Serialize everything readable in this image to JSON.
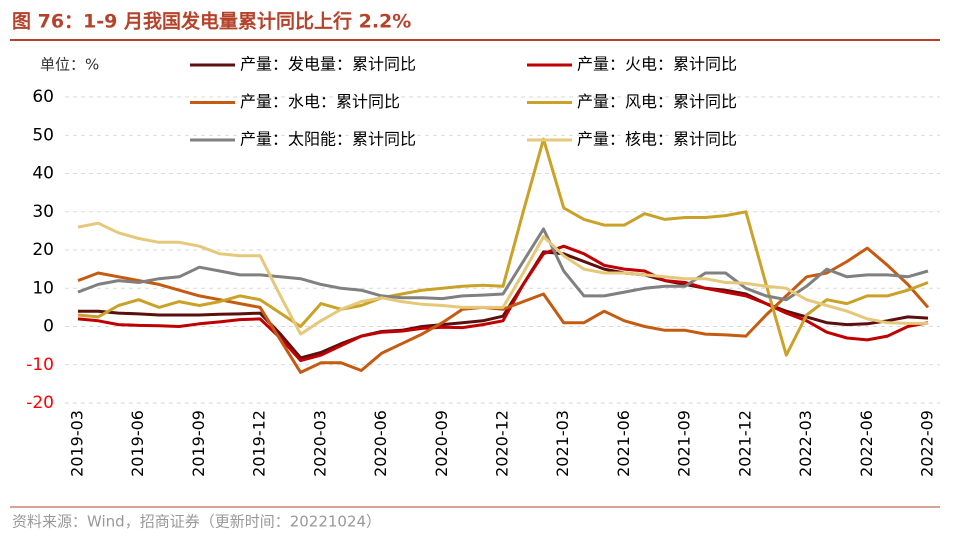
{
  "chart_data": {
    "type": "line",
    "title": "图 76：1-9 月我国发电量累计同比上行 2.2%",
    "y_label": "单位：%",
    "source": "资料来源：Wind，招商证券（更新时间：20221024）",
    "categories": [
      "2019-03",
      null,
      null,
      "2019-06",
      null,
      null,
      "2019-09",
      null,
      null,
      "2019-12",
      null,
      null,
      "2020-03",
      null,
      null,
      "2020-06",
      null,
      null,
      "2020-09",
      null,
      null,
      "2020-12",
      null,
      null,
      "2021-03",
      null,
      null,
      "2021-06",
      null,
      null,
      "2021-09",
      null,
      null,
      "2021-12",
      null,
      null,
      "2022-03",
      null,
      null,
      "2022-06",
      null,
      null,
      "2022-09"
    ],
    "ylim": [
      -20,
      60
    ],
    "yticks": [
      -20,
      -10,
      0,
      10,
      20,
      30,
      40,
      50,
      60
    ],
    "grid": true,
    "negative_tick_color": "#ff0000",
    "series": [
      {
        "name": "产量：发电量：累计同比",
        "color": "#5b0f0f",
        "values": [
          4,
          4,
          3.5,
          3.3,
          3,
          3,
          3,
          3.2,
          3.3,
          3.5,
          -2,
          -8.2,
          -6.8,
          -4.5,
          -2.5,
          -1.3,
          -1,
          0,
          0.5,
          1,
          1.5,
          2.7,
          11,
          19.5,
          19,
          17,
          15,
          14,
          13.5,
          12,
          11,
          10,
          9.5,
          8.5,
          6,
          4,
          2.5,
          1,
          0.5,
          0.7,
          1.5,
          2.5,
          2.2
        ]
      },
      {
        "name": "产量：火电：累计同比",
        "color": "#c00000",
        "values": [
          2,
          1.5,
          0.5,
          0.3,
          0.2,
          0,
          0.7,
          1.2,
          1.8,
          2,
          -3,
          -8.9,
          -7.5,
          -5,
          -2.5,
          -1.5,
          -1.2,
          -0.5,
          -0.2,
          -0.3,
          0.5,
          1.5,
          11,
          19,
          21,
          19,
          16,
          15,
          14.5,
          12,
          11.5,
          10,
          9,
          8,
          6,
          3.5,
          1.5,
          -1.5,
          -3,
          -3.5,
          -2.5,
          0,
          1
        ]
      },
      {
        "name": "产量：水电：累计同比",
        "color": "#c55a11",
        "values": [
          12,
          14,
          13,
          12,
          11,
          9.5,
          8,
          7,
          6,
          5,
          -3.5,
          -12,
          -9.5,
          -9.5,
          -11.5,
          -7,
          -4.5,
          -2,
          1,
          4.5,
          5,
          4.5,
          6.5,
          8.5,
          1,
          1,
          4,
          1.5,
          0,
          -1,
          -1,
          -2,
          -2.2,
          -2.5,
          3,
          8,
          13,
          14,
          17,
          20.5,
          16,
          11,
          5
        ]
      },
      {
        "name": "产量：风电：累计同比",
        "color": "#c9a227",
        "values": [
          3,
          2.5,
          5.5,
          7,
          5,
          6.5,
          5.5,
          6.5,
          8,
          7,
          3.5,
          0,
          6,
          4.5,
          5.5,
          7.5,
          8.5,
          9.5,
          10,
          10.5,
          10.8,
          10.5,
          30,
          49,
          31,
          28,
          26.5,
          26.5,
          29.5,
          28,
          28.5,
          28.5,
          29,
          30,
          11,
          -7.5,
          3,
          7,
          6,
          8,
          8,
          9.5,
          11.5
        ]
      },
      {
        "name": "产量：太阳能：累计同比",
        "color": "#808080",
        "values": [
          9,
          11,
          12,
          11.5,
          12.5,
          13,
          15.5,
          14.5,
          13.5,
          13.5,
          13,
          12.5,
          11,
          10,
          9.5,
          8,
          7.5,
          7.5,
          7.3,
          8,
          8.2,
          8.5,
          17,
          25.5,
          14.5,
          8,
          8,
          9,
          10,
          10.5,
          10.5,
          14,
          14,
          10,
          8,
          7,
          10.5,
          15,
          13,
          13.5,
          13.5,
          13,
          14.5
        ]
      },
      {
        "name": "产量：核电：累计同比",
        "color": "#e5c87a",
        "values": [
          26,
          27,
          24.5,
          23,
          22,
          22,
          21,
          19,
          18.5,
          18.5,
          8,
          -2,
          1.5,
          4.5,
          6.5,
          7.5,
          6.5,
          5.8,
          5.5,
          5,
          5,
          5,
          14,
          23.5,
          18.5,
          15,
          14,
          14,
          13.5,
          13,
          12.5,
          12.5,
          11.5,
          11.3,
          10.5,
          10,
          7,
          5.5,
          4,
          2,
          1,
          0.8,
          0.8
        ]
      }
    ]
  }
}
